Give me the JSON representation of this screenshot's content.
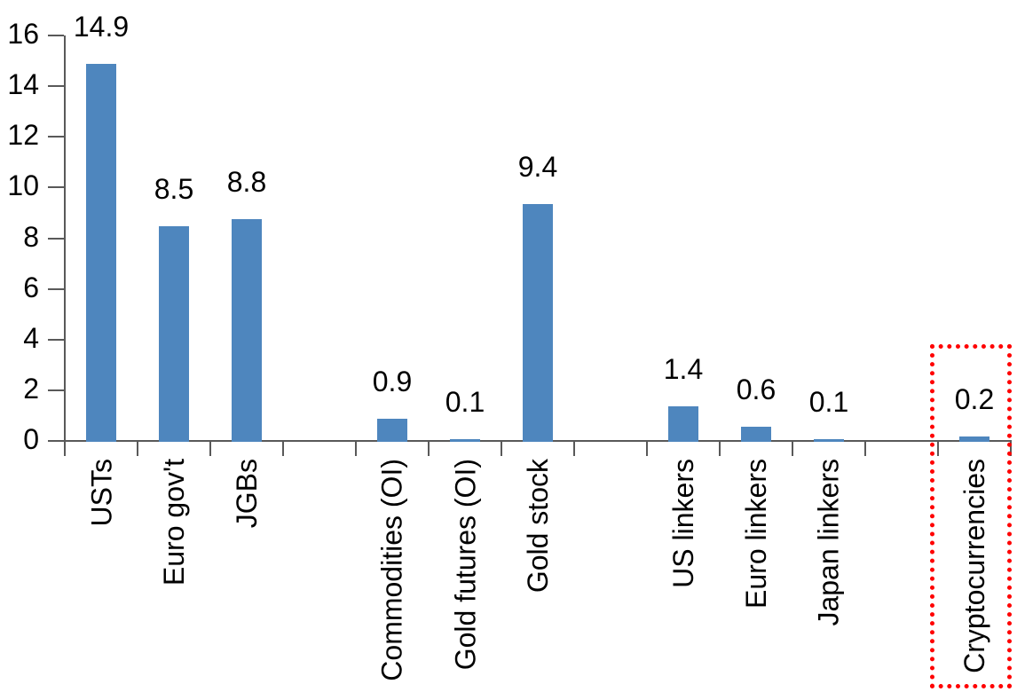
{
  "chart_data": {
    "type": "bar",
    "categories": [
      "USTs",
      "Euro gov't",
      "JGBs",
      "Commodities (OI)",
      "Gold futures (OI)",
      "Gold stock",
      "US linkers",
      "Euro linkers",
      "Japan linkers",
      "Cryptocurrencies"
    ],
    "values": [
      14.9,
      8.5,
      8.8,
      0.9,
      0.1,
      9.4,
      1.4,
      0.6,
      0.1,
      0.2
    ],
    "data_labels": [
      "14.9",
      "8.5",
      "8.8",
      "0.9",
      "0.1",
      "9.4",
      "1.4",
      "0.6",
      "0.1",
      "0.2"
    ],
    "slot_indices": [
      0,
      1,
      2,
      4,
      5,
      6,
      8,
      9,
      10,
      12
    ],
    "total_slots": 13,
    "y_axis": {
      "min": 0,
      "max": 16,
      "step": 2,
      "tick_labels": [
        "0",
        "2",
        "4",
        "6",
        "8",
        "10",
        "12",
        "14",
        "16"
      ],
      "ylim": [
        0,
        16
      ]
    },
    "grid": false,
    "legend": false,
    "bar_color": "#4E86BE",
    "axis_color": "#595959",
    "text_color": "#000000",
    "highlight_box": {
      "target_category": "Cryptocurrencies",
      "color": "#FF0000",
      "style": "dotted"
    }
  }
}
